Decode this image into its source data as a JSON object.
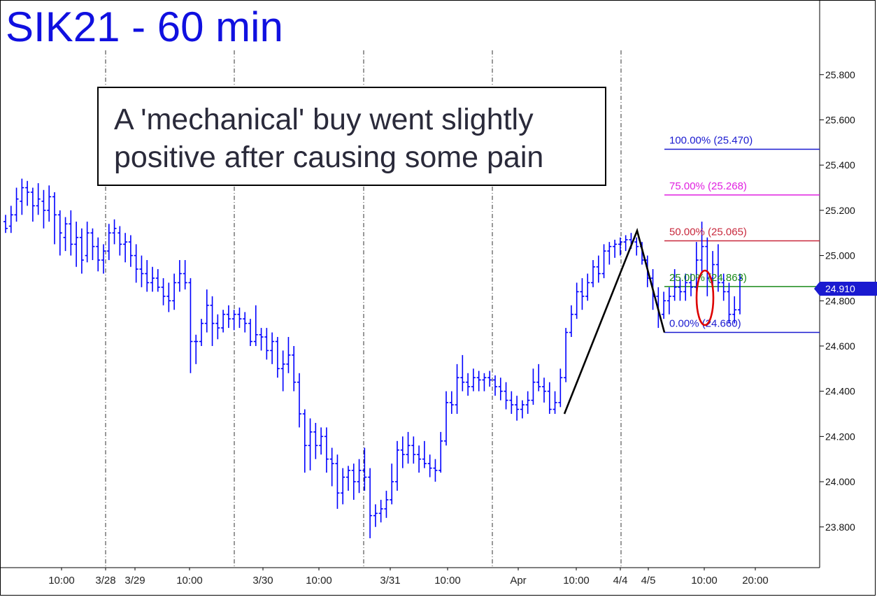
{
  "title": "SIK21 - 60 min",
  "annotation": {
    "line1": "A 'mechanical' buy went slightly",
    "line2": "positive after causing some pain"
  },
  "last_price_label": "24.910",
  "colors": {
    "bars": "#0000ff",
    "title": "#1010e0",
    "fib_100": "#1a1ad0",
    "fib_75": "#e020e0",
    "fib_50": "#c8283c",
    "fib_25": "#1a8a1a",
    "fib_0": "#1a1ad0",
    "pattern": "#000000",
    "ellipse": "#dd0000"
  },
  "chart_data": {
    "type": "ohlc",
    "title": "SIK21 - 60 min",
    "y_ticks": [
      "23.800",
      "24.000",
      "24.200",
      "24.400",
      "24.600",
      "24.800",
      "25.000",
      "25.200",
      "25.400",
      "25.600",
      "25.800"
    ],
    "ylim": [
      23.62,
      26.13
    ],
    "x_ticks": [
      "10:00",
      "3/28",
      "3/29",
      "10:00",
      "3/30",
      "10:00",
      "3/31",
      "10:00",
      "Apr",
      "10:00",
      "4/4",
      "4/5",
      "10:00",
      "20:00"
    ],
    "fib_levels": [
      {
        "label": "100.00% (25.470)",
        "value": 25.47
      },
      {
        "label": "75.00% (25.268)",
        "value": 25.268
      },
      {
        "label": "50.00% (25.065)",
        "value": 25.065
      },
      {
        "label": "25.00% (24.863)",
        "value": 24.863
      },
      {
        "label": "0.00% (24.660)",
        "value": 24.66
      }
    ],
    "pattern_points": [
      24.3,
      25.11,
      24.66
    ],
    "last_price": 24.91,
    "bars": [
      [
        25.15,
        25.18,
        25.1,
        25.12
      ],
      [
        25.13,
        25.22,
        25.1,
        25.18
      ],
      [
        25.18,
        25.3,
        25.15,
        25.25
      ],
      [
        25.24,
        25.34,
        25.18,
        25.3
      ],
      [
        25.3,
        25.33,
        25.22,
        25.28
      ],
      [
        25.28,
        25.3,
        25.15,
        25.22
      ],
      [
        25.22,
        25.32,
        25.18,
        25.25
      ],
      [
        25.24,
        25.29,
        25.12,
        25.2
      ],
      [
        25.2,
        25.31,
        25.15,
        25.26
      ],
      [
        25.26,
        25.28,
        25.05,
        25.18
      ],
      [
        25.18,
        25.2,
        25.0,
        25.1
      ],
      [
        25.08,
        25.17,
        25.02,
        25.14
      ],
      [
        25.14,
        25.2,
        25.0,
        25.05
      ],
      [
        25.05,
        25.15,
        24.95,
        25.08
      ],
      [
        25.08,
        25.12,
        24.92,
        24.98
      ],
      [
        25.0,
        25.15,
        24.97,
        25.1
      ],
      [
        25.1,
        25.12,
        24.98,
        25.04
      ],
      [
        25.04,
        25.08,
        24.93,
        24.98
      ],
      [
        24.98,
        25.05,
        24.92,
        25.02
      ],
      [
        25.02,
        25.14,
        24.98,
        25.1
      ],
      [
        25.1,
        25.16,
        25.05,
        25.12
      ],
      [
        25.1,
        25.13,
        25.0,
        25.05
      ],
      [
        25.05,
        25.1,
        24.97,
        25.06
      ],
      [
        25.06,
        25.09,
        24.95,
        25.0
      ],
      [
        25.0,
        25.05,
        24.88,
        24.94
      ],
      [
        24.94,
        25.0,
        24.86,
        24.92
      ],
      [
        24.92,
        24.98,
        24.84,
        24.88
      ],
      [
        24.88,
        24.95,
        24.84,
        24.9
      ],
      [
        24.9,
        24.94,
        24.84,
        24.86
      ],
      [
        24.86,
        24.9,
        24.78,
        24.82
      ],
      [
        24.82,
        24.88,
        24.75,
        24.8
      ],
      [
        24.8,
        24.92,
        24.76,
        24.88
      ],
      [
        24.88,
        24.98,
        24.84,
        24.92
      ],
      [
        24.92,
        24.98,
        24.85,
        24.88
      ],
      [
        24.88,
        24.9,
        24.48,
        24.62
      ],
      [
        24.62,
        24.65,
        24.52,
        24.62
      ],
      [
        24.62,
        24.72,
        24.6,
        24.7
      ],
      [
        24.7,
        24.85,
        24.66,
        24.78
      ],
      [
        24.78,
        24.82,
        24.6,
        24.7
      ],
      [
        24.7,
        24.74,
        24.63,
        24.68
      ],
      [
        24.68,
        24.76,
        24.66,
        24.74
      ],
      [
        24.74,
        24.78,
        24.68,
        24.72
      ],
      [
        24.72,
        24.76,
        24.67,
        24.74
      ],
      [
        24.74,
        24.77,
        24.68,
        24.72
      ],
      [
        24.72,
        24.75,
        24.66,
        24.7
      ],
      [
        24.7,
        24.72,
        24.6,
        24.62
      ],
      [
        24.62,
        24.78,
        24.6,
        24.65
      ],
      [
        24.65,
        24.68,
        24.58,
        24.64
      ],
      [
        24.64,
        24.68,
        24.54,
        24.58
      ],
      [
        24.58,
        24.66,
        24.52,
        24.62
      ],
      [
        24.62,
        24.64,
        24.46,
        24.5
      ],
      [
        24.5,
        24.58,
        24.4,
        24.52
      ],
      [
        24.52,
        24.64,
        24.48,
        24.56
      ],
      [
        24.56,
        24.6,
        24.4,
        24.44
      ],
      [
        24.44,
        24.48,
        24.24,
        24.3
      ],
      [
        24.3,
        24.32,
        24.04,
        24.16
      ],
      [
        24.16,
        24.28,
        24.05,
        24.22
      ],
      [
        24.22,
        24.26,
        24.1,
        24.16
      ],
      [
        24.16,
        24.24,
        24.12,
        24.2
      ],
      [
        24.2,
        24.24,
        24.04,
        24.1
      ],
      [
        24.1,
        24.15,
        23.98,
        24.08
      ],
      [
        24.08,
        24.12,
        23.88,
        23.95
      ],
      [
        23.95,
        24.06,
        23.9,
        24.02
      ],
      [
        24.02,
        24.07,
        23.96,
        24.05
      ],
      [
        24.05,
        24.08,
        23.92,
        24.0
      ],
      [
        24.0,
        24.1,
        23.95,
        24.05
      ],
      [
        24.05,
        24.15,
        23.96,
        24.02
      ],
      [
        24.02,
        24.06,
        23.75,
        23.85
      ],
      [
        23.85,
        23.9,
        23.8,
        23.86
      ],
      [
        23.86,
        23.92,
        23.82,
        23.88
      ],
      [
        23.88,
        23.96,
        23.84,
        23.92
      ],
      [
        23.92,
        24.08,
        23.9,
        24.0
      ],
      [
        24.0,
        24.18,
        23.96,
        24.14
      ],
      [
        24.14,
        24.2,
        24.06,
        24.12
      ],
      [
        24.12,
        24.22,
        24.08,
        24.16
      ],
      [
        24.16,
        24.2,
        24.08,
        24.12
      ],
      [
        24.12,
        24.16,
        24.04,
        24.1
      ],
      [
        24.1,
        24.18,
        24.06,
        24.08
      ],
      [
        24.08,
        24.12,
        24.02,
        24.06
      ],
      [
        24.06,
        24.1,
        24.0,
        24.05
      ],
      [
        24.05,
        24.22,
        24.04,
        24.18
      ],
      [
        24.18,
        24.4,
        24.16,
        24.35
      ],
      [
        24.35,
        24.4,
        24.3,
        24.34
      ],
      [
        24.34,
        24.52,
        24.3,
        24.46
      ],
      [
        24.46,
        24.56,
        24.4,
        24.44
      ],
      [
        24.44,
        24.48,
        24.38,
        24.42
      ],
      [
        24.42,
        24.5,
        24.4,
        24.46
      ],
      [
        24.46,
        24.49,
        24.4,
        24.45
      ],
      [
        24.45,
        24.48,
        24.4,
        24.46
      ],
      [
        24.46,
        24.49,
        24.42,
        24.45
      ],
      [
        24.45,
        24.47,
        24.38,
        24.42
      ],
      [
        24.42,
        24.46,
        24.36,
        24.4
      ],
      [
        24.4,
        24.44,
        24.32,
        24.36
      ],
      [
        24.36,
        24.4,
        24.3,
        24.34
      ],
      [
        24.34,
        24.38,
        24.27,
        24.32
      ],
      [
        24.32,
        24.36,
        24.28,
        24.34
      ],
      [
        24.34,
        24.4,
        24.3,
        24.36
      ],
      [
        24.36,
        24.5,
        24.34,
        24.44
      ],
      [
        24.44,
        24.52,
        24.4,
        24.42
      ],
      [
        24.42,
        24.46,
        24.35,
        24.4
      ],
      [
        24.4,
        24.44,
        24.3,
        24.32
      ],
      [
        24.32,
        24.4,
        24.3,
        24.35
      ],
      [
        24.35,
        24.5,
        24.33,
        24.46
      ],
      [
        24.46,
        24.68,
        24.44,
        24.66
      ],
      [
        24.66,
        24.78,
        24.64,
        24.74
      ],
      [
        24.74,
        24.88,
        24.72,
        24.84
      ],
      [
        24.84,
        24.9,
        24.76,
        24.82
      ],
      [
        24.82,
        24.92,
        24.8,
        24.88
      ],
      [
        24.88,
        24.98,
        24.86,
        24.95
      ],
      [
        24.95,
        25.0,
        24.88,
        24.92
      ],
      [
        24.92,
        25.05,
        24.9,
        25.02
      ],
      [
        25.02,
        25.06,
        24.96,
        25.04
      ],
      [
        25.04,
        25.07,
        24.99,
        25.05
      ],
      [
        25.05,
        25.08,
        25.0,
        25.06
      ],
      [
        25.06,
        25.09,
        25.02,
        25.07
      ],
      [
        25.07,
        25.1,
        25.03,
        25.06
      ],
      [
        25.06,
        25.08,
        25.0,
        25.04
      ],
      [
        25.04,
        25.06,
        24.96,
        24.98
      ],
      [
        24.98,
        25.0,
        24.86,
        24.9
      ],
      [
        24.9,
        24.94,
        24.76,
        24.82
      ],
      [
        24.82,
        24.86,
        24.68,
        24.74
      ],
      [
        24.74,
        24.84,
        24.72,
        24.8
      ],
      [
        24.8,
        24.86,
        24.74,
        24.82
      ],
      [
        24.82,
        24.94,
        24.8,
        24.86
      ],
      [
        24.86,
        24.9,
        24.8,
        24.84
      ],
      [
        24.84,
        24.92,
        24.8,
        24.88
      ],
      [
        24.88,
        24.92,
        24.82,
        24.86
      ],
      [
        24.86,
        25.06,
        24.84,
        24.98
      ],
      [
        24.98,
        25.15,
        24.92,
        25.04
      ],
      [
        25.04,
        25.08,
        24.82,
        24.9
      ],
      [
        24.9,
        25.02,
        24.86,
        24.96
      ],
      [
        24.96,
        25.05,
        24.84,
        24.88
      ],
      [
        24.88,
        24.92,
        24.8,
        24.84
      ],
      [
        24.84,
        24.88,
        24.7,
        24.74
      ],
      [
        24.74,
        24.82,
        24.7,
        24.76
      ],
      [
        24.76,
        24.92,
        24.74,
        24.9
      ]
    ]
  }
}
